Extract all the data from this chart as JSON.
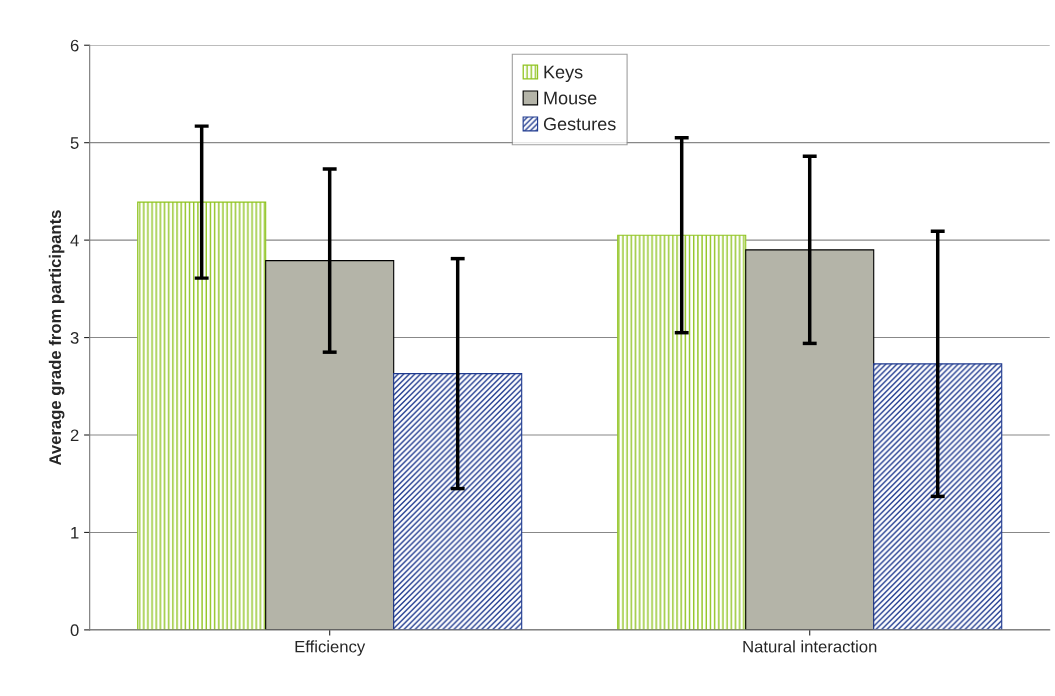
{
  "chart_data": {
    "type": "bar",
    "ylabel": "Average grade from participants",
    "categories": [
      "Efficiency",
      "Natural interaction"
    ],
    "series": [
      {
        "name": "Keys",
        "color": "#8fc31f",
        "values": [
          4.39,
          4.05
        ],
        "errors": [
          0.78,
          1.0
        ]
      },
      {
        "name": "Mouse",
        "color": "#b4b4a8",
        "values": [
          3.79,
          3.9
        ],
        "errors": [
          0.94,
          0.96
        ]
      },
      {
        "name": "Gestures",
        "color": "#1f3a8f",
        "values": [
          2.63,
          2.73
        ],
        "errors": [
          1.18,
          1.36
        ]
      }
    ],
    "ylim": [
      0,
      6
    ],
    "yticks": [
      0,
      1,
      2,
      3,
      4,
      5,
      6
    ],
    "grid": "y",
    "legend": "top"
  }
}
